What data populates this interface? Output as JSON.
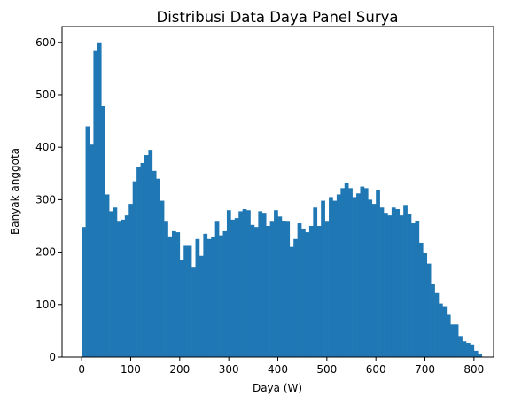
{
  "chart_data": {
    "type": "bar",
    "title": "Distribusi Data Daya Panel Surya",
    "xlabel": "Daya (W)",
    "ylabel": "Banyak anggota",
    "xlim": [
      -40,
      840
    ],
    "ylim": [
      0,
      630
    ],
    "xticks": [
      0,
      100,
      200,
      300,
      400,
      500,
      600,
      700,
      800
    ],
    "yticks": [
      0,
      100,
      200,
      300,
      400,
      500,
      600
    ],
    "bin_start": 0,
    "bin_width": 8,
    "bar_color": "#1f77b4",
    "grid": false,
    "legend": "none",
    "values": [
      248,
      440,
      405,
      585,
      600,
      478,
      310,
      278,
      285,
      258,
      262,
      270,
      292,
      335,
      362,
      370,
      385,
      395,
      355,
      340,
      298,
      258,
      230,
      240,
      238,
      185,
      212,
      212,
      172,
      225,
      193,
      235,
      225,
      228,
      258,
      232,
      240,
      280,
      262,
      265,
      278,
      282,
      280,
      252,
      248,
      278,
      275,
      250,
      258,
      280,
      268,
      260,
      258,
      210,
      225,
      255,
      245,
      238,
      250,
      285,
      250,
      298,
      258,
      305,
      298,
      310,
      322,
      332,
      322,
      305,
      312,
      325,
      322,
      300,
      292,
      318,
      285,
      275,
      270,
      285,
      282,
      270,
      290,
      272,
      255,
      260,
      218,
      198,
      178,
      140,
      122,
      102,
      97,
      82,
      62,
      62,
      40,
      30,
      27,
      24,
      12,
      5
    ]
  }
}
